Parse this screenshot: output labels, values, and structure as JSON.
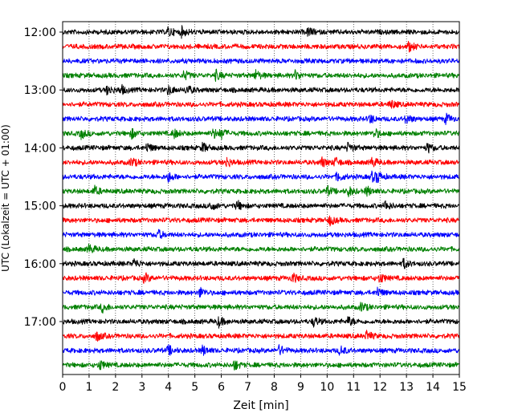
{
  "chart_data": {
    "type": "line",
    "subtype": "helicorder",
    "title": "",
    "xlabel": "Zeit  [min]",
    "ylabel": "UTC (Lokalzeit = UTC + 01:00)",
    "xlim": [
      0,
      15
    ],
    "x_ticks": [
      0,
      1,
      2,
      3,
      4,
      5,
      6,
      7,
      8,
      9,
      10,
      11,
      12,
      13,
      14,
      15
    ],
    "x_gridlines": "dotted vertical at each minute",
    "row_interval_minutes": 15,
    "row_start": "12:00",
    "row_count": 24,
    "y_ticks": [
      {
        "row": 0,
        "label": "12:00"
      },
      {
        "row": 4,
        "label": "13:00"
      },
      {
        "row": 8,
        "label": "14:00"
      },
      {
        "row": 12,
        "label": "15:00"
      },
      {
        "row": 16,
        "label": "16:00"
      },
      {
        "row": 20,
        "label": "17:00"
      }
    ],
    "trace_colors": [
      "#000000",
      "#ff0000",
      "#0000ff",
      "#008000"
    ],
    "events": [
      {
        "row": 0,
        "minutes": [
          4.0,
          4.5,
          9.3
        ]
      },
      {
        "row": 1,
        "minutes": [
          13.1
        ]
      },
      {
        "row": 3,
        "minutes": [
          4.6,
          5.8,
          7.3,
          8.8
        ]
      },
      {
        "row": 4,
        "minutes": [
          1.7,
          2.2,
          4.0,
          4.7
        ]
      },
      {
        "row": 5,
        "minutes": [
          12.4
        ]
      },
      {
        "row": 6,
        "minutes": [
          11.6,
          13.0,
          14.5
        ]
      },
      {
        "row": 7,
        "minutes": [
          0.7,
          2.6,
          4.2,
          5.7,
          6.0,
          11.8
        ]
      },
      {
        "row": 8,
        "minutes": [
          3.2,
          5.3,
          10.8,
          13.8
        ]
      },
      {
        "row": 9,
        "minutes": [
          2.6,
          6.2,
          9.8,
          10.3,
          11.7
        ]
      },
      {
        "row": 10,
        "minutes": [
          4.0,
          10.4,
          11.7,
          11.9
        ]
      },
      {
        "row": 11,
        "minutes": [
          1.2,
          10.0,
          10.8,
          11.5
        ]
      },
      {
        "row": 12,
        "minutes": [
          5.6,
          6.6,
          12.2
        ]
      },
      {
        "row": 13,
        "minutes": [
          10.1
        ]
      },
      {
        "row": 14,
        "minutes": [
          3.6
        ]
      },
      {
        "row": 15,
        "minutes": [
          1.0
        ]
      },
      {
        "row": 16,
        "minutes": [
          2.7,
          12.9
        ]
      },
      {
        "row": 17,
        "minutes": [
          3.1,
          8.7,
          12.0
        ]
      },
      {
        "row": 18,
        "minutes": [
          5.2,
          11.9
        ]
      },
      {
        "row": 19,
        "minutes": [
          1.5,
          11.3
        ]
      },
      {
        "row": 20,
        "minutes": [
          5.9,
          9.5,
          10.8
        ]
      },
      {
        "row": 21,
        "minutes": [
          1.3,
          11.5
        ]
      },
      {
        "row": 22,
        "minutes": [
          4.0,
          5.3,
          8.2,
          10.5
        ]
      },
      {
        "row": 23,
        "minutes": [
          1.4,
          6.5
        ]
      }
    ]
  }
}
